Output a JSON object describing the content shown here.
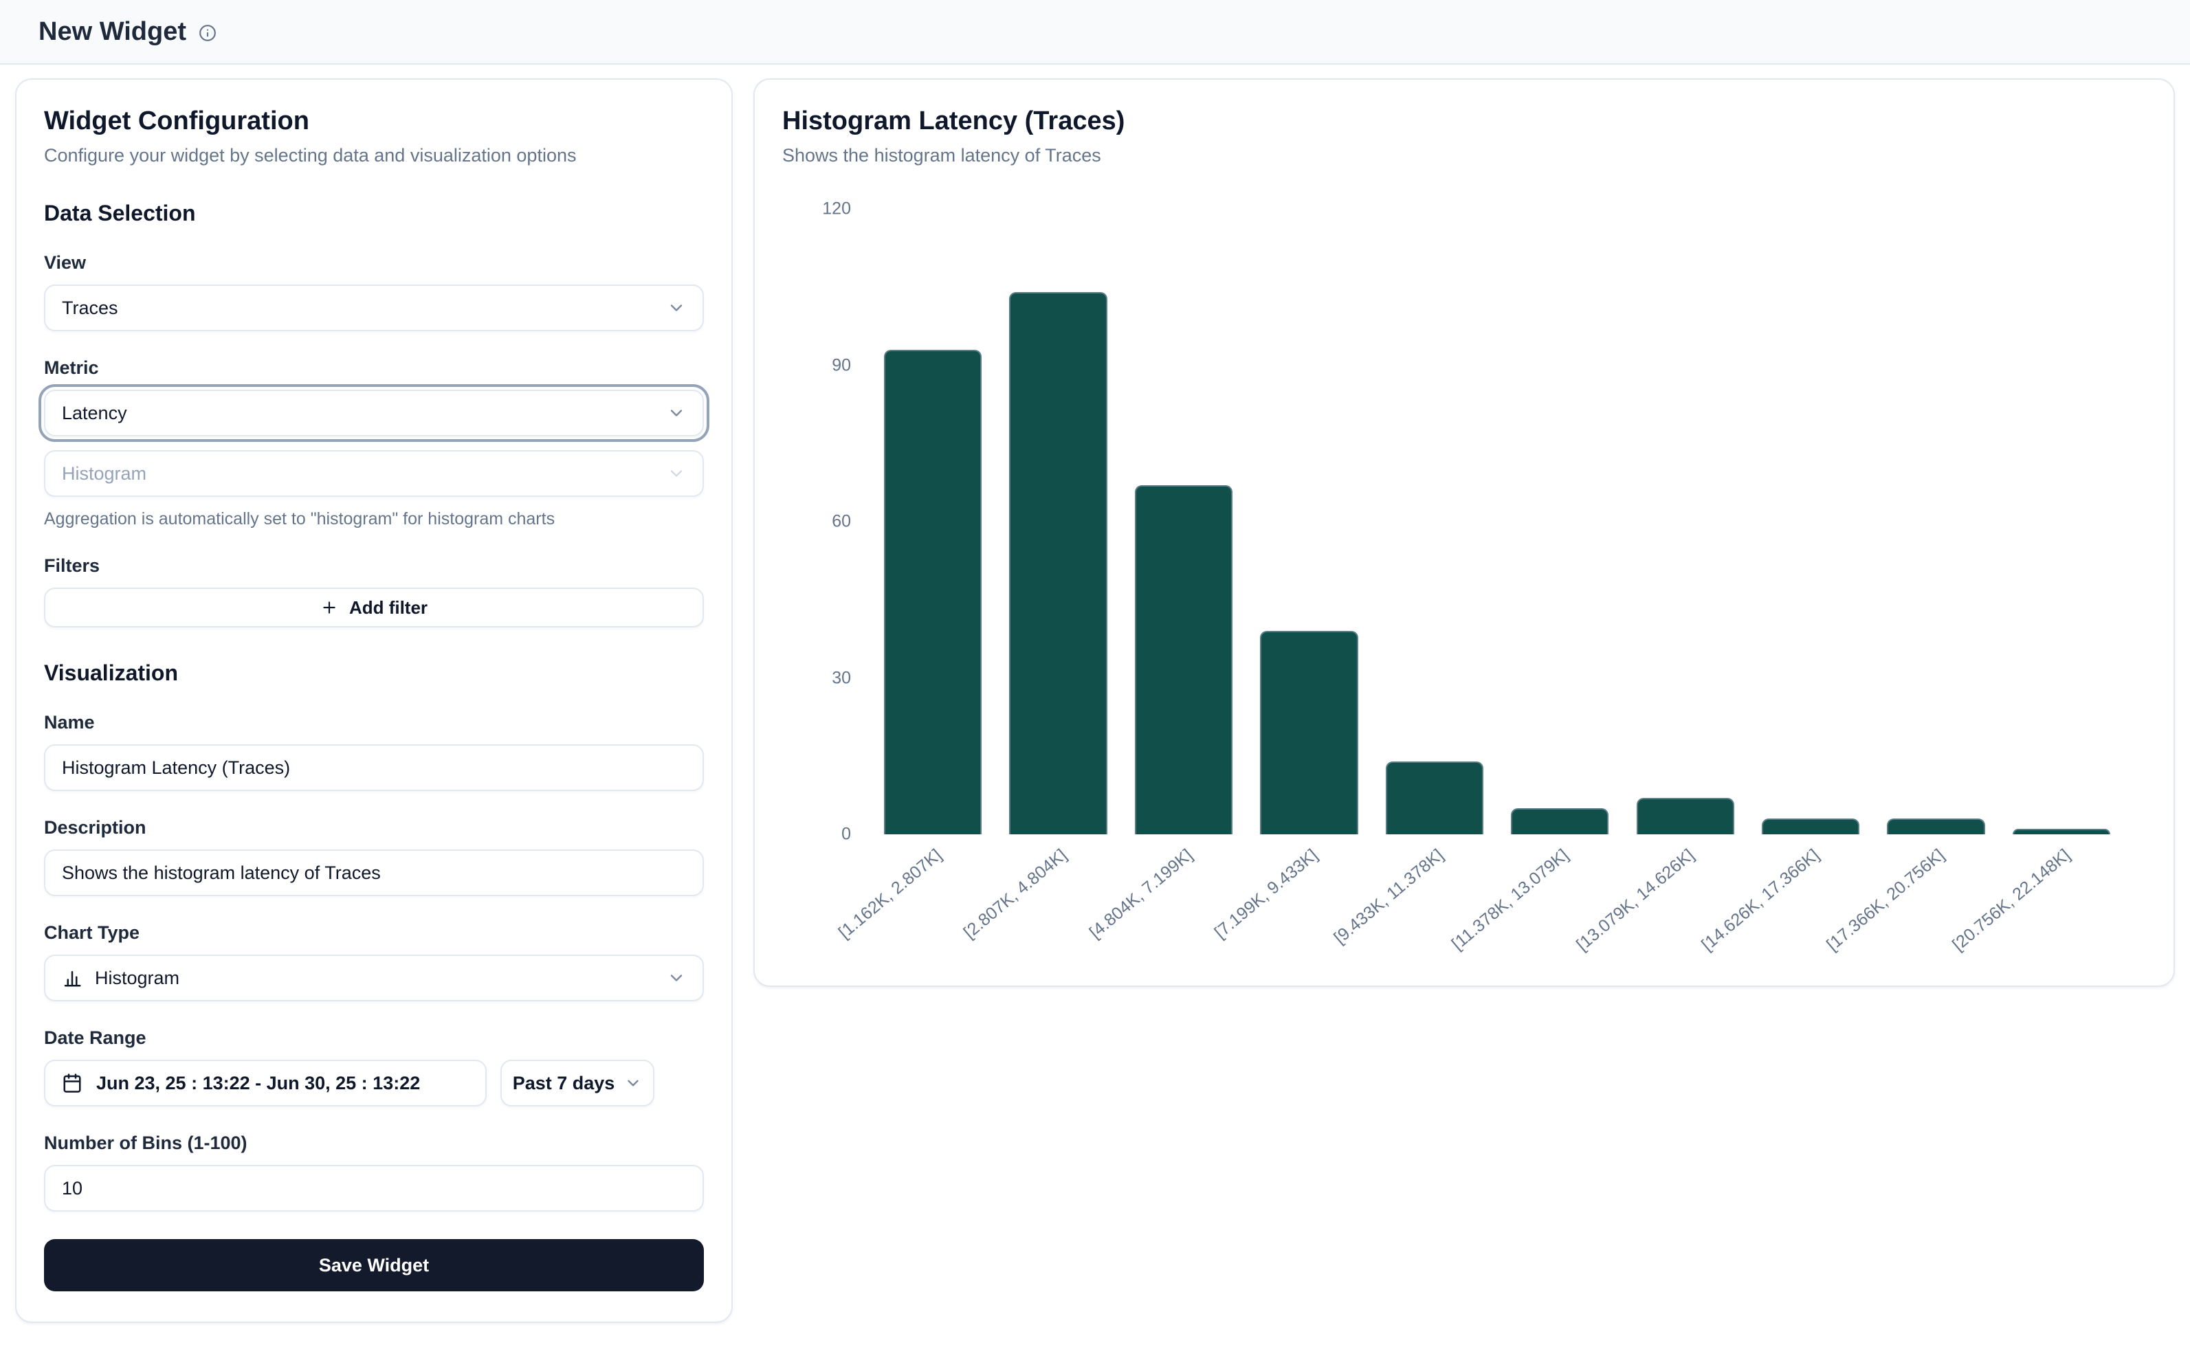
{
  "header": {
    "title": "New Widget"
  },
  "config_panel": {
    "title": "Widget Configuration",
    "subtitle": "Configure your widget by selecting data and visualization options",
    "data_selection": {
      "heading": "Data Selection",
      "view": {
        "label": "View",
        "value": "Traces"
      },
      "metric": {
        "label": "Metric",
        "value": "Latency"
      },
      "aggregation": {
        "value": "Histogram",
        "note": "Aggregation is automatically set to \"histogram\" for histogram charts"
      },
      "filters": {
        "label": "Filters",
        "add_button_label": "Add filter"
      }
    },
    "visualization": {
      "heading": "Visualization",
      "name": {
        "label": "Name",
        "value": "Histogram Latency (Traces)"
      },
      "description": {
        "label": "Description",
        "value": "Shows the histogram latency of Traces"
      },
      "chart_type": {
        "label": "Chart Type",
        "value": "Histogram"
      },
      "date_range": {
        "label": "Date Range",
        "value": "Jun 23, 25 : 13:22 - Jun 30, 25 : 13:22",
        "preset": "Past 7 days"
      },
      "bins": {
        "label": "Number of Bins (1-100)",
        "value": "10"
      }
    },
    "save_button_label": "Save Widget"
  },
  "chart_panel": {
    "title": "Histogram Latency (Traces)",
    "subtitle": "Shows the histogram latency of Traces"
  },
  "chart_data": {
    "type": "bar",
    "title": "Histogram Latency (Traces)",
    "categories": [
      "[1.162K, 2.807K]",
      "[2.807K, 4.804K]",
      "[4.804K, 7.199K]",
      "[7.199K, 9.433K]",
      "[9.433K, 11.378K]",
      "[11.378K, 13.079K]",
      "[13.079K, 14.626K]",
      "[14.626K, 17.366K]",
      "[17.366K, 20.756K]",
      "[20.756K, 22.148K]"
    ],
    "values": [
      93,
      104,
      67,
      39,
      14,
      5,
      7,
      3,
      3,
      1
    ],
    "xlabel": "",
    "ylabel": "",
    "ylim": [
      0,
      120
    ],
    "yticks": [
      0,
      30,
      60,
      90,
      120
    ],
    "grid": false,
    "legend": false,
    "bar_color": "#11504a"
  },
  "icons": {
    "header_info": "info-icon",
    "select_chevron": "chevron-down-icon",
    "add_filter": "plus-icon",
    "date_range": "calendar-icon",
    "chart_type": "chart-column-icon"
  },
  "colors": {
    "bar_fill": "#11504a",
    "header_bg": "#f8fafc",
    "card_border": "#e2e8f0",
    "text_primary": "#1e293b",
    "text_secondary": "#64748b",
    "save_button_bg": "#131a2b",
    "focus_ring": "#94a3b8"
  }
}
